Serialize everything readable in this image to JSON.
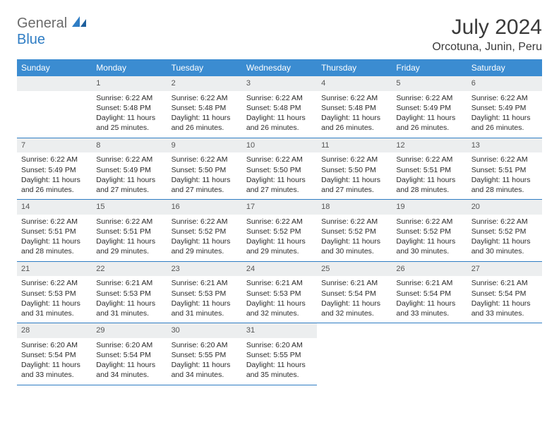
{
  "logo": {
    "word1": "General",
    "word2": "Blue",
    "color1": "#6b6b6b",
    "color2": "#2f7dc4"
  },
  "title": "July 2024",
  "location": "Orcotuna, Junin, Peru",
  "colors": {
    "header_bg": "#3b8cd1",
    "header_text": "#ffffff",
    "daynum_bg": "#eceeef",
    "rule": "#2f7dc4",
    "page_bg": "#ffffff"
  },
  "weekdays": [
    "Sunday",
    "Monday",
    "Tuesday",
    "Wednesday",
    "Thursday",
    "Friday",
    "Saturday"
  ],
  "days": [
    {
      "n": "",
      "sunrise": "",
      "sunset": "",
      "daylight": ""
    },
    {
      "n": "1",
      "sunrise": "6:22 AM",
      "sunset": "5:48 PM",
      "daylight": "11 hours and 25 minutes."
    },
    {
      "n": "2",
      "sunrise": "6:22 AM",
      "sunset": "5:48 PM",
      "daylight": "11 hours and 26 minutes."
    },
    {
      "n": "3",
      "sunrise": "6:22 AM",
      "sunset": "5:48 PM",
      "daylight": "11 hours and 26 minutes."
    },
    {
      "n": "4",
      "sunrise": "6:22 AM",
      "sunset": "5:48 PM",
      "daylight": "11 hours and 26 minutes."
    },
    {
      "n": "5",
      "sunrise": "6:22 AM",
      "sunset": "5:49 PM",
      "daylight": "11 hours and 26 minutes."
    },
    {
      "n": "6",
      "sunrise": "6:22 AM",
      "sunset": "5:49 PM",
      "daylight": "11 hours and 26 minutes."
    },
    {
      "n": "7",
      "sunrise": "6:22 AM",
      "sunset": "5:49 PM",
      "daylight": "11 hours and 26 minutes."
    },
    {
      "n": "8",
      "sunrise": "6:22 AM",
      "sunset": "5:49 PM",
      "daylight": "11 hours and 27 minutes."
    },
    {
      "n": "9",
      "sunrise": "6:22 AM",
      "sunset": "5:50 PM",
      "daylight": "11 hours and 27 minutes."
    },
    {
      "n": "10",
      "sunrise": "6:22 AM",
      "sunset": "5:50 PM",
      "daylight": "11 hours and 27 minutes."
    },
    {
      "n": "11",
      "sunrise": "6:22 AM",
      "sunset": "5:50 PM",
      "daylight": "11 hours and 27 minutes."
    },
    {
      "n": "12",
      "sunrise": "6:22 AM",
      "sunset": "5:51 PM",
      "daylight": "11 hours and 28 minutes."
    },
    {
      "n": "13",
      "sunrise": "6:22 AM",
      "sunset": "5:51 PM",
      "daylight": "11 hours and 28 minutes."
    },
    {
      "n": "14",
      "sunrise": "6:22 AM",
      "sunset": "5:51 PM",
      "daylight": "11 hours and 28 minutes."
    },
    {
      "n": "15",
      "sunrise": "6:22 AM",
      "sunset": "5:51 PM",
      "daylight": "11 hours and 29 minutes."
    },
    {
      "n": "16",
      "sunrise": "6:22 AM",
      "sunset": "5:52 PM",
      "daylight": "11 hours and 29 minutes."
    },
    {
      "n": "17",
      "sunrise": "6:22 AM",
      "sunset": "5:52 PM",
      "daylight": "11 hours and 29 minutes."
    },
    {
      "n": "18",
      "sunrise": "6:22 AM",
      "sunset": "5:52 PM",
      "daylight": "11 hours and 30 minutes."
    },
    {
      "n": "19",
      "sunrise": "6:22 AM",
      "sunset": "5:52 PM",
      "daylight": "11 hours and 30 minutes."
    },
    {
      "n": "20",
      "sunrise": "6:22 AM",
      "sunset": "5:52 PM",
      "daylight": "11 hours and 30 minutes."
    },
    {
      "n": "21",
      "sunrise": "6:22 AM",
      "sunset": "5:53 PM",
      "daylight": "11 hours and 31 minutes."
    },
    {
      "n": "22",
      "sunrise": "6:21 AM",
      "sunset": "5:53 PM",
      "daylight": "11 hours and 31 minutes."
    },
    {
      "n": "23",
      "sunrise": "6:21 AM",
      "sunset": "5:53 PM",
      "daylight": "11 hours and 31 minutes."
    },
    {
      "n": "24",
      "sunrise": "6:21 AM",
      "sunset": "5:53 PM",
      "daylight": "11 hours and 32 minutes."
    },
    {
      "n": "25",
      "sunrise": "6:21 AM",
      "sunset": "5:54 PM",
      "daylight": "11 hours and 32 minutes."
    },
    {
      "n": "26",
      "sunrise": "6:21 AM",
      "sunset": "5:54 PM",
      "daylight": "11 hours and 33 minutes."
    },
    {
      "n": "27",
      "sunrise": "6:21 AM",
      "sunset": "5:54 PM",
      "daylight": "11 hours and 33 minutes."
    },
    {
      "n": "28",
      "sunrise": "6:20 AM",
      "sunset": "5:54 PM",
      "daylight": "11 hours and 33 minutes."
    },
    {
      "n": "29",
      "sunrise": "6:20 AM",
      "sunset": "5:54 PM",
      "daylight": "11 hours and 34 minutes."
    },
    {
      "n": "30",
      "sunrise": "6:20 AM",
      "sunset": "5:55 PM",
      "daylight": "11 hours and 34 minutes."
    },
    {
      "n": "31",
      "sunrise": "6:20 AM",
      "sunset": "5:55 PM",
      "daylight": "11 hours and 35 minutes."
    },
    {
      "n": "",
      "sunrise": "",
      "sunset": "",
      "daylight": ""
    },
    {
      "n": "",
      "sunrise": "",
      "sunset": "",
      "daylight": ""
    },
    {
      "n": "",
      "sunrise": "",
      "sunset": "",
      "daylight": ""
    }
  ],
  "labels": {
    "sunrise": "Sunrise:",
    "sunset": "Sunset:",
    "daylight": "Daylight:"
  }
}
